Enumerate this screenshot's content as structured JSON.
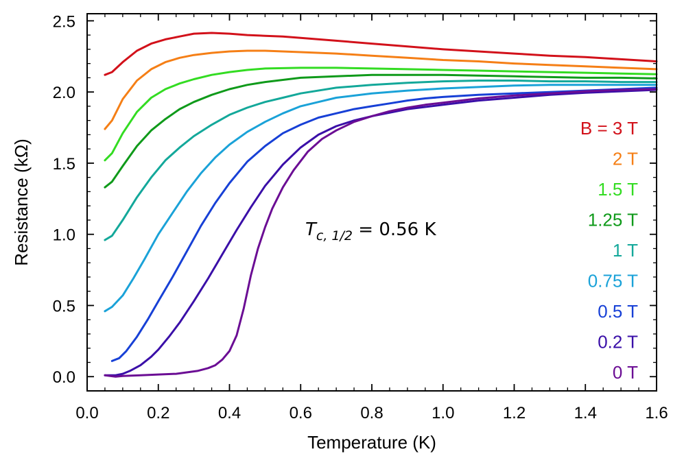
{
  "chart_data": {
    "type": "line",
    "title": "",
    "xlabel": "Temperature (K)",
    "ylabel": "Resistance (kΩ)",
    "xlim": [
      0.0,
      1.6
    ],
    "ylim": [
      -0.1,
      2.55
    ],
    "xticks": [
      {
        "value": 0.0,
        "label": "0.0"
      },
      {
        "value": 0.2,
        "label": "0.2"
      },
      {
        "value": 0.4,
        "label": "0.4"
      },
      {
        "value": 0.6,
        "label": "0.6"
      },
      {
        "value": 0.8,
        "label": "0.8"
      },
      {
        "value": 1.0,
        "label": "1.0"
      },
      {
        "value": 1.2,
        "label": "1.2"
      },
      {
        "value": 1.4,
        "label": "1.4"
      },
      {
        "value": 1.6,
        "label": "1.6"
      }
    ],
    "yticks": [
      {
        "value": 0.0,
        "label": "0.0"
      },
      {
        "value": 0.5,
        "label": "0.5"
      },
      {
        "value": 1.0,
        "label": "1.0"
      },
      {
        "value": 1.5,
        "label": "1.5"
      },
      {
        "value": 2.0,
        "label": "2.0"
      },
      {
        "value": 2.5,
        "label": "2.5"
      }
    ],
    "x_minor_step": 0.05,
    "y_minor_step": 0.1,
    "grid": false,
    "legend_position": "right, inside plot",
    "annotation": {
      "T": "T",
      "sub": "c, 1/2",
      "rest": " = 0.56 K",
      "position_data": [
        0.615,
        1.0
      ]
    },
    "series": [
      {
        "name": "B = 3 T",
        "color": "#d2111a",
        "x": [
          0.05,
          0.07,
          0.1,
          0.14,
          0.18,
          0.22,
          0.26,
          0.3,
          0.35,
          0.4,
          0.45,
          0.5,
          0.55,
          0.6,
          0.7,
          0.8,
          0.9,
          1.0,
          1.1,
          1.2,
          1.3,
          1.4,
          1.5,
          1.6
        ],
        "values": [
          2.12,
          2.14,
          2.21,
          2.29,
          2.34,
          2.37,
          2.39,
          2.41,
          2.415,
          2.41,
          2.4,
          2.395,
          2.39,
          2.38,
          2.36,
          2.34,
          2.32,
          2.3,
          2.285,
          2.27,
          2.255,
          2.245,
          2.23,
          2.215
        ]
      },
      {
        "name": "2 T",
        "color": "#f57f16",
        "x": [
          0.05,
          0.07,
          0.1,
          0.14,
          0.18,
          0.22,
          0.26,
          0.3,
          0.35,
          0.4,
          0.45,
          0.5,
          0.6,
          0.7,
          0.8,
          0.9,
          1.0,
          1.1,
          1.2,
          1.3,
          1.4,
          1.5,
          1.6
        ],
        "values": [
          1.74,
          1.8,
          1.95,
          2.08,
          2.16,
          2.21,
          2.24,
          2.26,
          2.275,
          2.285,
          2.29,
          2.29,
          2.28,
          2.27,
          2.255,
          2.24,
          2.225,
          2.215,
          2.2,
          2.19,
          2.18,
          2.17,
          2.16
        ]
      },
      {
        "name": "1.5 T",
        "color": "#33dc22",
        "x": [
          0.05,
          0.07,
          0.1,
          0.14,
          0.18,
          0.22,
          0.26,
          0.3,
          0.35,
          0.4,
          0.45,
          0.5,
          0.6,
          0.7,
          0.8,
          0.9,
          1.0,
          1.1,
          1.2,
          1.3,
          1.4,
          1.5,
          1.6
        ],
        "values": [
          1.52,
          1.57,
          1.71,
          1.86,
          1.96,
          2.02,
          2.06,
          2.09,
          2.12,
          2.14,
          2.155,
          2.165,
          2.17,
          2.17,
          2.165,
          2.16,
          2.155,
          2.15,
          2.145,
          2.14,
          2.135,
          2.13,
          2.125
        ]
      },
      {
        "name": "1.25 T",
        "color": "#0f9a1a",
        "x": [
          0.05,
          0.07,
          0.1,
          0.14,
          0.18,
          0.22,
          0.26,
          0.3,
          0.35,
          0.4,
          0.45,
          0.5,
          0.6,
          0.7,
          0.8,
          0.9,
          1.0,
          1.1,
          1.2,
          1.3,
          1.4,
          1.5,
          1.6
        ],
        "values": [
          1.33,
          1.37,
          1.48,
          1.62,
          1.73,
          1.81,
          1.88,
          1.93,
          1.98,
          2.02,
          2.05,
          2.07,
          2.1,
          2.11,
          2.12,
          2.12,
          2.12,
          2.115,
          2.11,
          2.105,
          2.1,
          2.1,
          2.095
        ]
      },
      {
        "name": "1 T",
        "color": "#13a89a",
        "x": [
          0.05,
          0.07,
          0.1,
          0.14,
          0.18,
          0.22,
          0.26,
          0.3,
          0.35,
          0.4,
          0.45,
          0.5,
          0.55,
          0.6,
          0.7,
          0.8,
          0.9,
          1.0,
          1.1,
          1.2,
          1.3,
          1.4,
          1.5,
          1.6
        ],
        "values": [
          0.96,
          0.99,
          1.1,
          1.26,
          1.4,
          1.52,
          1.61,
          1.69,
          1.77,
          1.84,
          1.89,
          1.93,
          1.96,
          1.99,
          2.03,
          2.05,
          2.065,
          2.075,
          2.08,
          2.08,
          2.075,
          2.075,
          2.07,
          2.07
        ]
      },
      {
        "name": "0.75 T",
        "color": "#1aa2d8",
        "x": [
          0.05,
          0.07,
          0.1,
          0.13,
          0.16,
          0.2,
          0.24,
          0.28,
          0.32,
          0.36,
          0.4,
          0.45,
          0.5,
          0.55,
          0.6,
          0.65,
          0.7,
          0.8,
          0.9,
          1.0,
          1.1,
          1.2,
          1.3,
          1.4,
          1.5,
          1.6
        ],
        "values": [
          0.46,
          0.49,
          0.57,
          0.69,
          0.82,
          1.0,
          1.15,
          1.3,
          1.43,
          1.54,
          1.63,
          1.72,
          1.79,
          1.85,
          1.9,
          1.93,
          1.96,
          1.99,
          2.01,
          2.025,
          2.035,
          2.045,
          2.05,
          2.05,
          2.05,
          2.05
        ]
      },
      {
        "name": "0.5 T",
        "color": "#1740d6",
        "x": [
          0.07,
          0.09,
          0.11,
          0.14,
          0.17,
          0.2,
          0.24,
          0.28,
          0.32,
          0.36,
          0.4,
          0.45,
          0.5,
          0.55,
          0.6,
          0.65,
          0.7,
          0.75,
          0.8,
          0.85,
          0.9,
          0.95,
          1.0,
          1.1,
          1.2,
          1.3,
          1.4,
          1.5,
          1.6
        ],
        "values": [
          0.11,
          0.13,
          0.18,
          0.28,
          0.4,
          0.53,
          0.7,
          0.88,
          1.06,
          1.22,
          1.36,
          1.51,
          1.62,
          1.71,
          1.77,
          1.82,
          1.85,
          1.88,
          1.9,
          1.92,
          1.94,
          1.955,
          1.965,
          1.98,
          1.99,
          2.0,
          2.01,
          2.02,
          2.03
        ]
      },
      {
        "name": "0.2 T",
        "color": "#3a0fa8",
        "x": [
          0.05,
          0.08,
          0.1,
          0.12,
          0.15,
          0.18,
          0.2,
          0.23,
          0.26,
          0.3,
          0.34,
          0.38,
          0.42,
          0.46,
          0.5,
          0.55,
          0.6,
          0.65,
          0.7,
          0.75,
          0.8,
          0.9,
          1.0,
          1.1,
          1.2,
          1.3,
          1.4,
          1.5,
          1.6
        ],
        "values": [
          0.01,
          0.01,
          0.02,
          0.04,
          0.08,
          0.14,
          0.19,
          0.28,
          0.38,
          0.53,
          0.69,
          0.86,
          1.03,
          1.19,
          1.34,
          1.49,
          1.61,
          1.7,
          1.76,
          1.8,
          1.83,
          1.88,
          1.91,
          1.94,
          1.96,
          1.98,
          1.995,
          2.005,
          2.015
        ]
      },
      {
        "name": "0 T",
        "color": "#6b0d94",
        "x": [
          0.05,
          0.08,
          0.1,
          0.15,
          0.2,
          0.25,
          0.28,
          0.31,
          0.34,
          0.36,
          0.38,
          0.4,
          0.42,
          0.44,
          0.46,
          0.48,
          0.5,
          0.52,
          0.55,
          0.58,
          0.62,
          0.66,
          0.7,
          0.75,
          0.8,
          0.85,
          0.9,
          0.95,
          1.0,
          1.05,
          1.1,
          1.2,
          1.3,
          1.4,
          1.5,
          1.6
        ],
        "values": [
          0.01,
          0.0,
          0.005,
          0.01,
          0.015,
          0.02,
          0.03,
          0.04,
          0.06,
          0.08,
          0.12,
          0.18,
          0.29,
          0.48,
          0.71,
          0.9,
          1.05,
          1.18,
          1.33,
          1.45,
          1.58,
          1.67,
          1.73,
          1.79,
          1.83,
          1.865,
          1.89,
          1.91,
          1.925,
          1.94,
          1.955,
          1.975,
          1.99,
          2.005,
          2.015,
          2.02
        ]
      }
    ]
  }
}
